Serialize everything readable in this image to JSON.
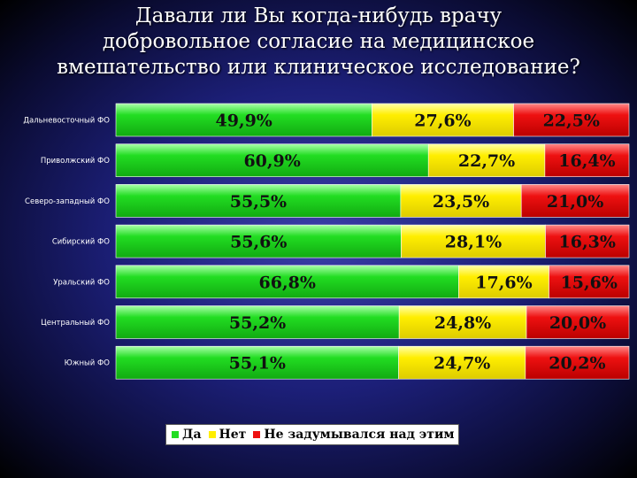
{
  "title_lines": [
    "Давали ли Вы когда-нибудь врачу",
    "добровольное согласие на медицинское",
    "вмешательство или клиническое исследование?"
  ],
  "colors": {
    "yes": "#22dd22",
    "no": "#ffee00",
    "not_thought": "#ee1111"
  },
  "chart_data": {
    "type": "bar",
    "orientation": "horizontal",
    "stacked": true,
    "title": "Давали ли Вы когда-нибудь врачу добровольное согласие на медицинское вмешательство или клиническое исследование?",
    "categories": [
      "Дальневосточный ФО",
      "Приволжский ФО",
      "Северо-западный ФО",
      "Сибирский ФО",
      "Уральский ФО",
      "Центральный ФО",
      "Южный ФО"
    ],
    "series": [
      {
        "name": "Да",
        "values": [
          49.9,
          60.9,
          55.5,
          55.6,
          66.8,
          55.2,
          55.1
        ],
        "labels": [
          "49,9%",
          "60,9%",
          "55,5%",
          "55,6%",
          "66,8%",
          "55,2%",
          "55,1%"
        ]
      },
      {
        "name": "Нет",
        "values": [
          27.6,
          22.7,
          23.5,
          28.1,
          17.6,
          24.8,
          24.7
        ],
        "labels": [
          "27,6%",
          "22,7%",
          "23,5%",
          "28,1%",
          "17,6%",
          "24,8%",
          "24,7%"
        ]
      },
      {
        "name": "Не задумывался над этим",
        "values": [
          22.5,
          16.4,
          21.0,
          16.3,
          15.6,
          20.0,
          20.2
        ],
        "labels": [
          "22,5%",
          "16,4%",
          "21,0%",
          "16,3%",
          "15,6%",
          "20,0%",
          "20,2%"
        ]
      }
    ],
    "xlim": [
      0,
      100
    ],
    "grid": false,
    "legend_position": "bottom"
  }
}
